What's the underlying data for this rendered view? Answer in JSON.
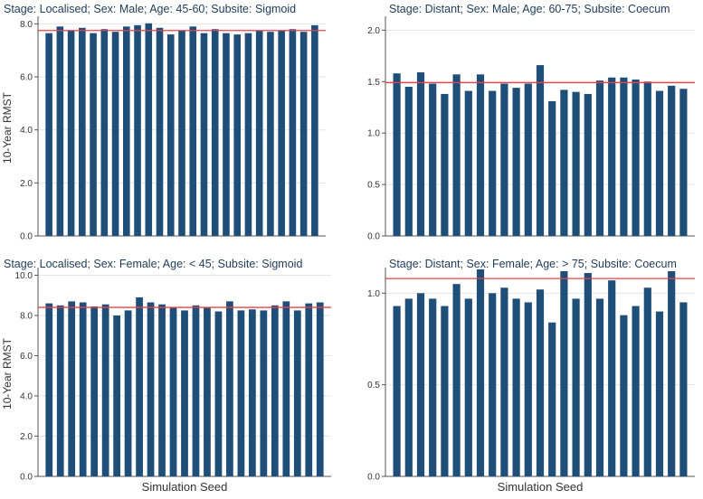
{
  "colors": {
    "bar": "#1f4e79",
    "reference_line": "#e8424a",
    "grid": "#e6e6e6",
    "title_text": "#1f3b5b",
    "axis_text": "#333333"
  },
  "shared_labels": {
    "ylabel": "10-Year RMST",
    "xlabel": "Simulation Seed"
  },
  "chart_data": [
    {
      "type": "bar",
      "title": "Stage: Localised; Sex: Male; Age: 45-60; Subsite: Sigmoid",
      "ylabel": "10-Year RMST",
      "xlabel": "",
      "ylim": [
        0,
        8.15
      ],
      "yticks": [
        0,
        2,
        4,
        6,
        8
      ],
      "ytick_labels": [
        "0.0",
        "2.0",
        "4.0",
        "6.0",
        "8.0"
      ],
      "reference_line": 7.75,
      "values": [
        7.65,
        7.9,
        7.75,
        7.85,
        7.65,
        7.8,
        7.7,
        7.9,
        7.95,
        8.02,
        7.85,
        7.6,
        7.75,
        7.9,
        7.65,
        7.8,
        7.65,
        7.6,
        7.65,
        7.75,
        7.7,
        7.75,
        7.8,
        7.7,
        7.95
      ]
    },
    {
      "type": "bar",
      "title": "Stage: Distant; Sex: Male; Age: 60-75; Subsite: Coecum",
      "ylabel": "",
      "xlabel": "",
      "ylim": [
        0,
        2.1
      ],
      "yticks": [
        0,
        0.5,
        1,
        1.5,
        2
      ],
      "ytick_labels": [
        "0.0",
        "0.5",
        "1.0",
        "1.5",
        "2.0"
      ],
      "reference_line": 1.49,
      "values": [
        1.58,
        1.45,
        1.59,
        1.48,
        1.38,
        1.57,
        1.41,
        1.57,
        1.41,
        1.48,
        1.44,
        1.48,
        1.66,
        1.31,
        1.42,
        1.4,
        1.38,
        1.51,
        1.54,
        1.54,
        1.52,
        1.5,
        1.41,
        1.46,
        1.43
      ]
    },
    {
      "type": "bar",
      "title": "Stage: Localised; Sex: Female; Age: < 45; Subsite: Sigmoid",
      "ylabel": "10-Year RMST",
      "xlabel": "Simulation Seed",
      "ylim": [
        0,
        10.2
      ],
      "yticks": [
        0,
        2,
        4,
        6,
        8,
        10
      ],
      "ytick_labels": [
        "0.0",
        "2.0",
        "4.0",
        "6.0",
        "8.0",
        "10.0"
      ],
      "reference_line": 8.4,
      "values": [
        8.6,
        8.5,
        8.7,
        8.65,
        8.45,
        8.55,
        8.0,
        8.25,
        8.9,
        8.65,
        8.55,
        8.4,
        8.25,
        8.5,
        8.4,
        8.2,
        8.7,
        8.25,
        8.3,
        8.25,
        8.5,
        8.7,
        8.25,
        8.6,
        8.65
      ]
    },
    {
      "type": "bar",
      "title": "Stage: Distant; Sex: Female; Age: > 75; Subsite: Coecum",
      "ylabel": "",
      "xlabel": "Simulation Seed",
      "ylim": [
        0,
        1.12
      ],
      "yticks": [
        0,
        0.5,
        1
      ],
      "ytick_labels": [
        "0.0",
        "0.5",
        "1.0"
      ],
      "reference_line": 1.08,
      "values": [
        0.93,
        0.97,
        1.0,
        0.97,
        0.93,
        1.05,
        0.97,
        1.13,
        1.0,
        1.03,
        0.97,
        0.95,
        1.02,
        0.84,
        1.12,
        0.97,
        1.11,
        0.97,
        1.07,
        0.88,
        0.93,
        1.03,
        0.9,
        1.12,
        0.95
      ]
    }
  ]
}
